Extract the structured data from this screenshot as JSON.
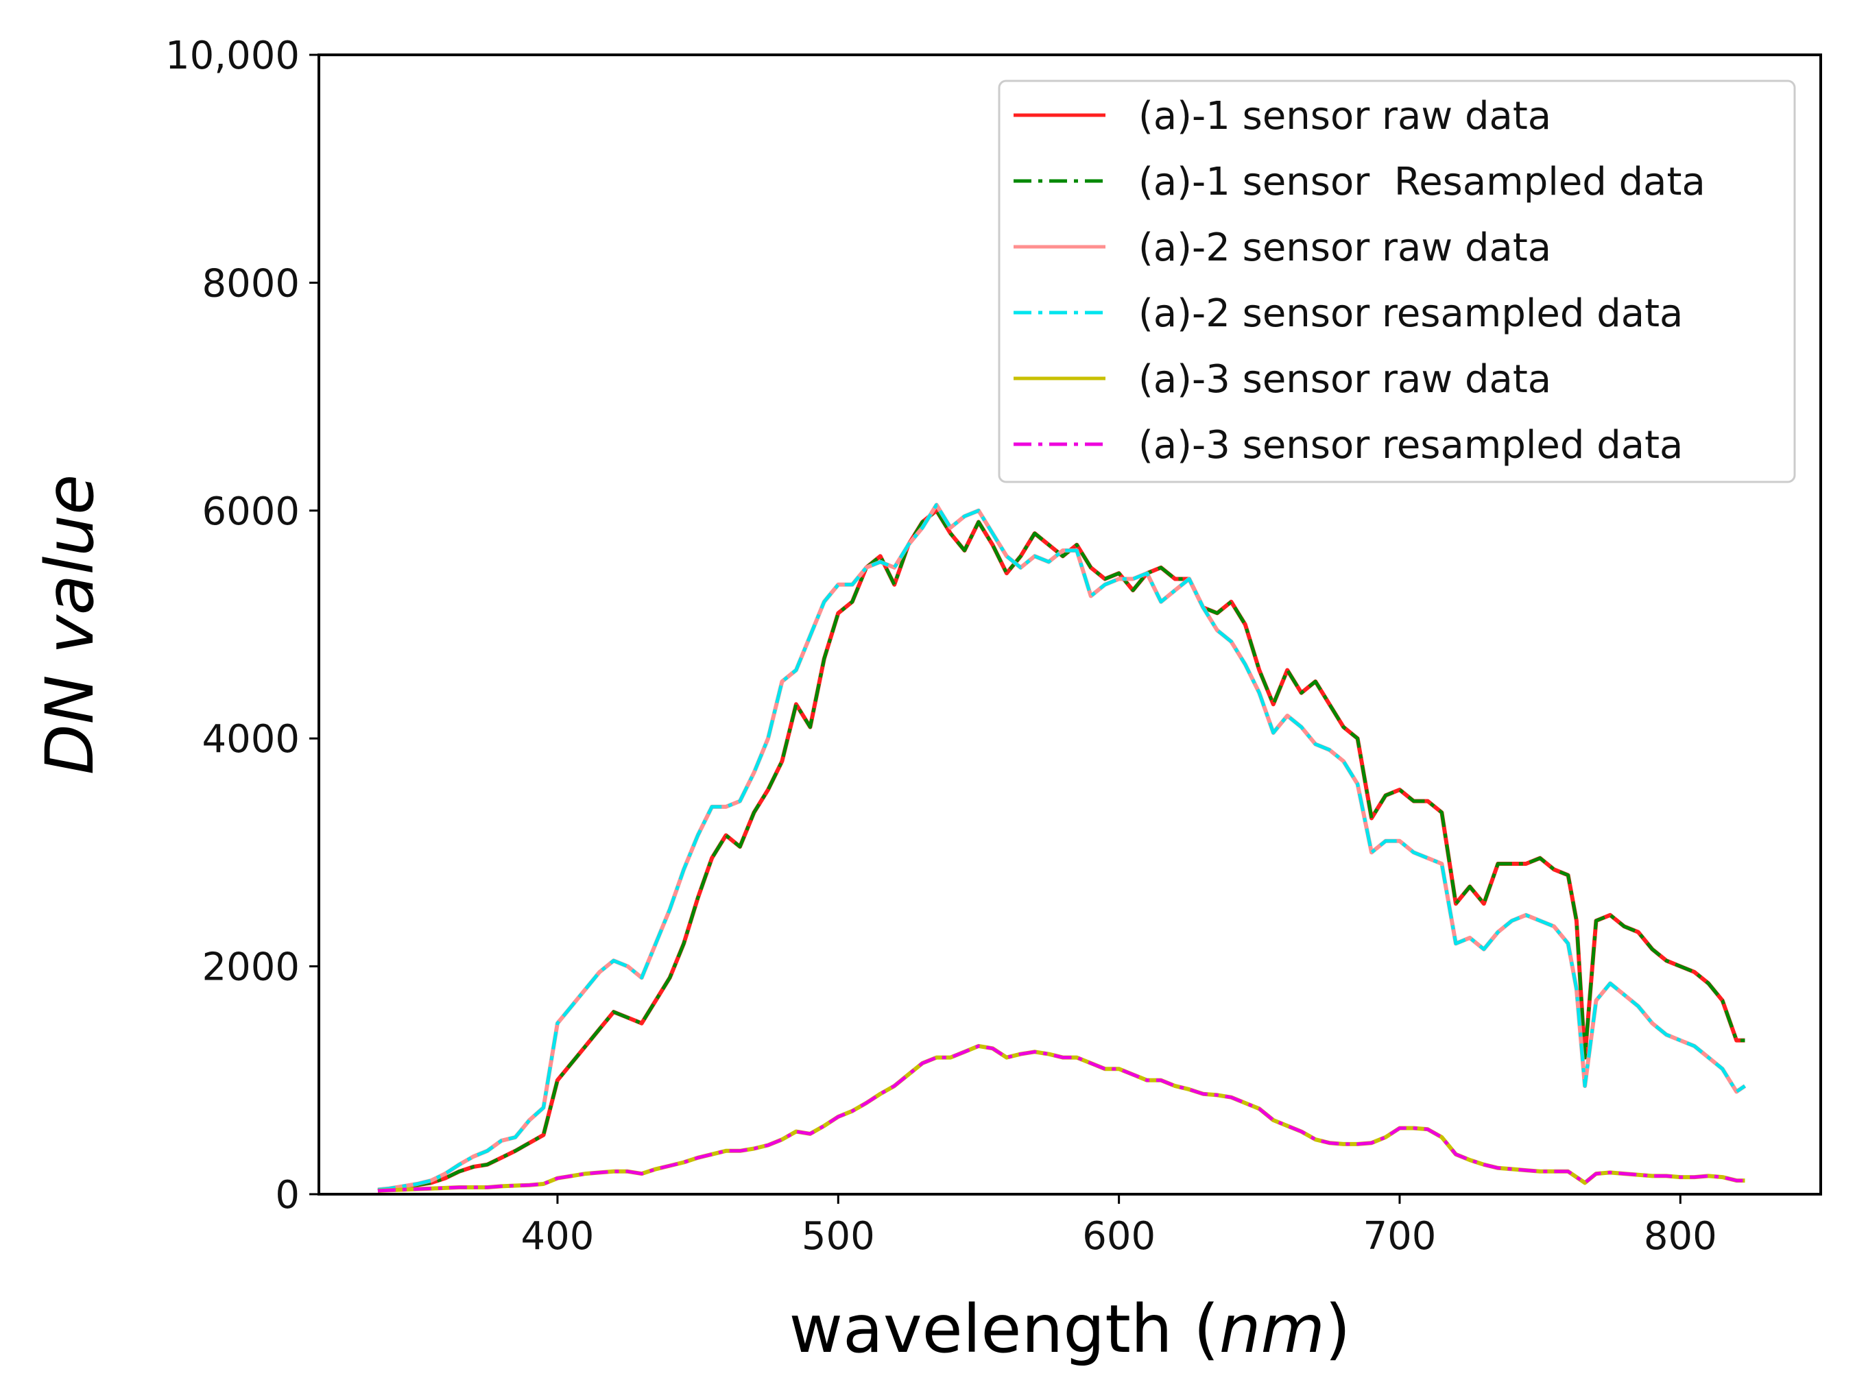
{
  "chart_data": {
    "type": "line",
    "title": "",
    "xlabel_main": "wavelength (",
    "xlabel_unit": "nm",
    "xlabel_end": ")",
    "ylabel": "DN value",
    "xlim": [
      315,
      850
    ],
    "ylim": [
      0,
      10000
    ],
    "xticks": [
      400,
      500,
      600,
      700,
      800
    ],
    "yticks": [
      0,
      2000,
      4000,
      6000,
      8000,
      10000
    ],
    "ytick_labels": [
      "0",
      "2000",
      "4000",
      "6000",
      "8000",
      "10,000"
    ],
    "grid": false,
    "legend_position": "top-right",
    "x": [
      336,
      340,
      345,
      350,
      355,
      360,
      365,
      370,
      375,
      380,
      385,
      390,
      395,
      400,
      405,
      410,
      415,
      420,
      425,
      430,
      435,
      440,
      445,
      450,
      455,
      460,
      465,
      470,
      475,
      480,
      485,
      490,
      495,
      500,
      505,
      510,
      515,
      520,
      525,
      530,
      535,
      540,
      545,
      550,
      555,
      560,
      565,
      570,
      575,
      580,
      585,
      590,
      595,
      600,
      605,
      610,
      615,
      620,
      625,
      630,
      635,
      640,
      645,
      650,
      655,
      660,
      665,
      670,
      675,
      680,
      685,
      690,
      695,
      700,
      705,
      710,
      715,
      720,
      725,
      730,
      735,
      740,
      745,
      750,
      755,
      760,
      763,
      766,
      770,
      775,
      780,
      785,
      790,
      795,
      800,
      805,
      810,
      815,
      820,
      823
    ],
    "series": [
      {
        "name": "(a)-1 sensor raw data",
        "color": "#ff2020",
        "dash": "solid",
        "values": [
          30,
          40,
          60,
          80,
          100,
          140,
          200,
          240,
          260,
          320,
          380,
          450,
          520,
          1000,
          1150,
          1300,
          1450,
          1600,
          1550,
          1500,
          1700,
          1900,
          2200,
          2600,
          2950,
          3150,
          3050,
          3350,
          3550,
          3800,
          4300,
          4100,
          4700,
          5100,
          5200,
          5500,
          5600,
          5350,
          5700,
          5900,
          6000,
          5800,
          5650,
          5900,
          5700,
          5450,
          5600,
          5800,
          5700,
          5600,
          5700,
          5500,
          5400,
          5450,
          5300,
          5450,
          5500,
          5400,
          5400,
          5150,
          5100,
          5200,
          5000,
          4600,
          4300,
          4600,
          4400,
          4500,
          4300,
          4100,
          4000,
          3300,
          3500,
          3550,
          3450,
          3450,
          3350,
          2550,
          2700,
          2550,
          2900,
          2900,
          2900,
          2950,
          2850,
          2800,
          2400,
          1200,
          2400,
          2450,
          2350,
          2300,
          2150,
          2050,
          2000,
          1950,
          1850,
          1700,
          1350,
          1350
        ]
      },
      {
        "name": "(a)-1 sensor  Resampled data",
        "color": "#008800",
        "dash": "dashdot",
        "values": [
          30,
          40,
          60,
          80,
          100,
          140,
          200,
          240,
          260,
          320,
          380,
          450,
          520,
          1000,
          1150,
          1300,
          1450,
          1600,
          1550,
          1500,
          1700,
          1900,
          2200,
          2600,
          2950,
          3150,
          3050,
          3350,
          3550,
          3800,
          4300,
          4100,
          4700,
          5100,
          5200,
          5500,
          5600,
          5350,
          5700,
          5900,
          6000,
          5800,
          5650,
          5900,
          5700,
          5450,
          5600,
          5800,
          5700,
          5600,
          5700,
          5500,
          5400,
          5450,
          5300,
          5450,
          5500,
          5400,
          5400,
          5150,
          5100,
          5200,
          5000,
          4600,
          4300,
          4600,
          4400,
          4500,
          4300,
          4100,
          4000,
          3300,
          3500,
          3550,
          3450,
          3450,
          3350,
          2550,
          2700,
          2550,
          2900,
          2900,
          2900,
          2950,
          2850,
          2800,
          2400,
          1200,
          2400,
          2450,
          2350,
          2300,
          2150,
          2050,
          2000,
          1950,
          1850,
          1700,
          1350,
          1350
        ]
      },
      {
        "name": "(a)-2 sensor raw data",
        "color": "#ff9090",
        "dash": "solid",
        "values": [
          40,
          50,
          70,
          90,
          120,
          180,
          260,
          330,
          380,
          470,
          500,
          650,
          760,
          1500,
          1650,
          1800,
          1950,
          2050,
          2000,
          1900,
          2200,
          2500,
          2850,
          3150,
          3400,
          3400,
          3450,
          3700,
          4000,
          4500,
          4600,
          4900,
          5200,
          5350,
          5350,
          5500,
          5550,
          5500,
          5700,
          5850,
          6050,
          5850,
          5950,
          6000,
          5800,
          5600,
          5500,
          5600,
          5550,
          5650,
          5650,
          5250,
          5350,
          5400,
          5400,
          5450,
          5200,
          5300,
          5400,
          5150,
          4950,
          4850,
          4650,
          4400,
          4050,
          4200,
          4100,
          3950,
          3900,
          3800,
          3600,
          3000,
          3100,
          3100,
          3000,
          2950,
          2900,
          2200,
          2250,
          2150,
          2300,
          2400,
          2450,
          2400,
          2350,
          2200,
          1800,
          950,
          1700,
          1850,
          1750,
          1650,
          1500,
          1400,
          1350,
          1300,
          1200,
          1100,
          900,
          950
        ]
      },
      {
        "name": "(a)-2 sensor resampled data",
        "color": "#00e5ee",
        "dash": "dashdot",
        "values": [
          40,
          50,
          70,
          90,
          120,
          180,
          260,
          330,
          380,
          470,
          500,
          650,
          760,
          1500,
          1650,
          1800,
          1950,
          2050,
          2000,
          1900,
          2200,
          2500,
          2850,
          3150,
          3400,
          3400,
          3450,
          3700,
          4000,
          4500,
          4600,
          4900,
          5200,
          5350,
          5350,
          5500,
          5550,
          5500,
          5700,
          5850,
          6050,
          5850,
          5950,
          6000,
          5800,
          5600,
          5500,
          5600,
          5550,
          5650,
          5650,
          5250,
          5350,
          5400,
          5400,
          5450,
          5200,
          5300,
          5400,
          5150,
          4950,
          4850,
          4650,
          4400,
          4050,
          4200,
          4100,
          3950,
          3900,
          3800,
          3600,
          3000,
          3100,
          3100,
          3000,
          2950,
          2900,
          2200,
          2250,
          2150,
          2300,
          2400,
          2450,
          2400,
          2350,
          2200,
          1800,
          950,
          1700,
          1850,
          1750,
          1650,
          1500,
          1400,
          1350,
          1300,
          1200,
          1100,
          900,
          950
        ]
      },
      {
        "name": "(a)-3 sensor raw data",
        "color": "#c8c000",
        "dash": "solid",
        "values": [
          30,
          35,
          40,
          45,
          50,
          55,
          60,
          60,
          60,
          70,
          75,
          80,
          90,
          140,
          160,
          180,
          190,
          200,
          200,
          180,
          220,
          250,
          280,
          320,
          350,
          380,
          380,
          400,
          430,
          480,
          550,
          530,
          600,
          680,
          730,
          800,
          880,
          950,
          1050,
          1150,
          1200,
          1200,
          1250,
          1300,
          1280,
          1200,
          1230,
          1250,
          1230,
          1200,
          1200,
          1150,
          1100,
          1100,
          1050,
          1000,
          1000,
          950,
          920,
          880,
          870,
          850,
          800,
          750,
          650,
          600,
          550,
          480,
          450,
          440,
          440,
          450,
          500,
          580,
          580,
          570,
          500,
          350,
          300,
          260,
          230,
          220,
          210,
          200,
          200,
          200,
          150,
          100,
          180,
          190,
          180,
          170,
          160,
          160,
          150,
          150,
          160,
          150,
          120,
          120
        ]
      },
      {
        "name": "(a)-3 sensor resampled data",
        "color": "#ee00dd",
        "dash": "dashdot",
        "values": [
          30,
          35,
          40,
          45,
          50,
          55,
          60,
          60,
          60,
          70,
          75,
          80,
          90,
          140,
          160,
          180,
          190,
          200,
          200,
          180,
          220,
          250,
          280,
          320,
          350,
          380,
          380,
          400,
          430,
          480,
          550,
          530,
          600,
          680,
          730,
          800,
          880,
          950,
          1050,
          1150,
          1200,
          1200,
          1250,
          1300,
          1280,
          1200,
          1230,
          1250,
          1230,
          1200,
          1200,
          1150,
          1100,
          1100,
          1050,
          1000,
          1000,
          950,
          920,
          880,
          870,
          850,
          800,
          750,
          650,
          600,
          550,
          480,
          450,
          440,
          440,
          450,
          500,
          580,
          580,
          570,
          500,
          350,
          300,
          260,
          230,
          220,
          210,
          200,
          200,
          200,
          150,
          100,
          180,
          190,
          180,
          170,
          160,
          160,
          150,
          150,
          160,
          150,
          120,
          120
        ]
      }
    ]
  }
}
